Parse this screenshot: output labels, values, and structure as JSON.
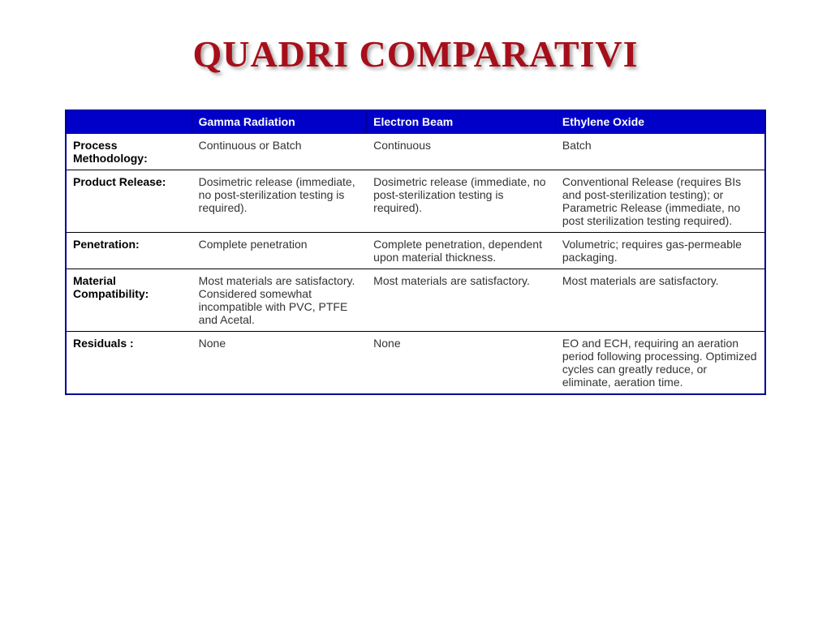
{
  "title": {
    "text": "QUADRI COMPARATIVI",
    "color": "#a60f1a",
    "font_family": "Georgia, serif",
    "font_size_pt": 36,
    "font_weight": 700
  },
  "table": {
    "type": "table",
    "header_bg": "#0000c8",
    "header_fg": "#ffffff",
    "border_color": "#000099",
    "row_border_color": "#000000",
    "body_font_family": "Verdana, sans-serif",
    "body_font_size_pt": 11,
    "columns": [
      {
        "label": "",
        "width_pct": 18
      },
      {
        "label": "Gamma Radiation",
        "width_pct": 25
      },
      {
        "label": "Electron Beam",
        "width_pct": 27
      },
      {
        "label": "Ethylene Oxide",
        "width_pct": 30
      }
    ],
    "rows": [
      {
        "label": "Process Methodology:",
        "cells": [
          "Continuous or Batch",
          "Continuous",
          "Batch"
        ]
      },
      {
        "label": "Product Release:",
        "cells": [
          "Dosimetric release (immediate, no post-sterilization testing is required).",
          "Dosimetric release (immediate, no post-sterilization testing is required).",
          "Conventional Release (requires BIs and post-sterilization testing); or Parametric Release (immediate, no post sterilization testing required)."
        ]
      },
      {
        "label": "Penetration:",
        "cells": [
          "Complete penetration",
          "Complete penetration, dependent upon material thickness.",
          "Volumetric; requires gas-permeable packaging."
        ]
      },
      {
        "label": "Material Compatibility:",
        "cells": [
          "Most materials are satisfactory. Considered somewhat incompatible with PVC, PTFE and Acetal.",
          "Most materials are satisfactory.",
          "Most materials are satisfactory."
        ]
      },
      {
        "label": "Residuals :",
        "cells": [
          "None",
          "None",
          "EO and ECH, requiring an aeration period following processing. Optimized cycles can greatly reduce, or eliminate, aeration time."
        ]
      }
    ]
  }
}
